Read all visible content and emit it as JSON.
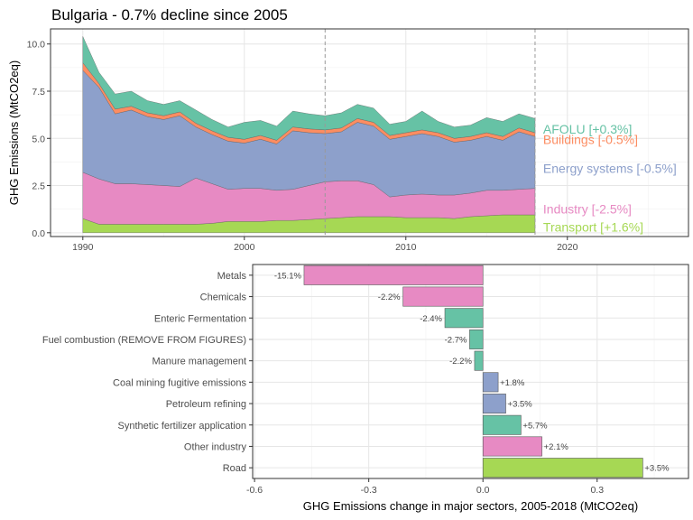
{
  "chart_data": [
    {
      "type": "area",
      "title": "Bulgaria - 0.7% decline since 2005",
      "xlabel": "",
      "ylabel": "GHG Emissions (MtCO2eq)",
      "xlim": [
        1988,
        2027.5
      ],
      "ylim": [
        -0.2,
        10.8
      ],
      "x_ticks": [
        1990,
        2000,
        2010,
        2020
      ],
      "y_ticks": [
        0.0,
        2.5,
        5.0,
        7.5,
        10.0
      ],
      "y_tick_labels": [
        "0.0",
        "2.5",
        "5.0",
        "7.5",
        "10.0"
      ],
      "reference_lines_x": [
        2005,
        2018
      ],
      "stacked": true,
      "grid": true,
      "legend": "direct labels at right",
      "x": [
        1990,
        1991,
        1992,
        1993,
        1994,
        1995,
        1996,
        1997,
        1998,
        1999,
        2000,
        2001,
        2002,
        2003,
        2004,
        2005,
        2006,
        2007,
        2008,
        2009,
        2010,
        2011,
        2012,
        2013,
        2014,
        2015,
        2016,
        2017,
        2018
      ],
      "series": [
        {
          "name": "Transport [+1.6%]",
          "color": "#a6d854",
          "values": [
            0.75,
            0.45,
            0.45,
            0.45,
            0.45,
            0.45,
            0.45,
            0.45,
            0.5,
            0.6,
            0.6,
            0.6,
            0.65,
            0.65,
            0.7,
            0.75,
            0.8,
            0.85,
            0.85,
            0.85,
            0.8,
            0.8,
            0.8,
            0.75,
            0.85,
            0.9,
            0.95,
            0.95,
            0.95
          ]
        },
        {
          "name": "Industry [-2.5%]",
          "color": "#e78ac3",
          "values": [
            2.45,
            2.4,
            2.15,
            2.15,
            2.1,
            2.05,
            2.0,
            2.45,
            2.1,
            1.7,
            1.75,
            1.75,
            1.6,
            1.65,
            1.8,
            1.95,
            1.95,
            1.9,
            1.7,
            1.05,
            1.2,
            1.25,
            1.2,
            1.25,
            1.25,
            1.35,
            1.3,
            1.35,
            1.4
          ]
        },
        {
          "name": "Energy systems [-0.5%]",
          "color": "#8da0cb",
          "values": [
            5.4,
            4.85,
            3.7,
            3.9,
            3.6,
            3.5,
            3.75,
            2.7,
            2.6,
            2.55,
            2.4,
            2.6,
            2.45,
            3.1,
            2.8,
            2.55,
            2.6,
            3.1,
            3.1,
            3.05,
            3.1,
            3.2,
            3.1,
            2.8,
            2.8,
            2.85,
            2.65,
            3.05,
            2.75
          ]
        },
        {
          "name": "Buildings [-0.5%]",
          "color": "#fc8d62",
          "values": [
            0.4,
            0.2,
            0.25,
            0.2,
            0.2,
            0.2,
            0.2,
            0.2,
            0.2,
            0.2,
            0.2,
            0.2,
            0.2,
            0.2,
            0.2,
            0.2,
            0.2,
            0.2,
            0.2,
            0.2,
            0.2,
            0.2,
            0.2,
            0.2,
            0.2,
            0.2,
            0.2,
            0.2,
            0.2
          ]
        },
        {
          "name": "AFOLU [+0.3%]",
          "color": "#66c2a5",
          "values": [
            1.4,
            0.6,
            0.8,
            0.8,
            0.65,
            0.6,
            0.6,
            0.7,
            0.6,
            0.55,
            0.9,
            0.8,
            0.75,
            0.85,
            0.8,
            0.75,
            0.8,
            0.75,
            0.75,
            0.6,
            0.6,
            1.0,
            0.6,
            0.6,
            0.6,
            0.8,
            0.8,
            0.75,
            0.75
          ]
        }
      ]
    },
    {
      "type": "bar",
      "orientation": "horizontal",
      "title": "",
      "xlabel": "GHG Emissions change in major sectors, 2005-2018 (MtCO2eq)",
      "ylabel": "",
      "xlim": [
        -0.605,
        0.54
      ],
      "x_ticks": [
        -0.6,
        -0.3,
        0.0,
        0.3
      ],
      "x_tick_labels": [
        "-0.6",
        "-0.3",
        "0.0",
        "0.3"
      ],
      "grid": true,
      "categories": [
        "Metals",
        "Chemicals",
        "Enteric Fermentation",
        "Fuel combustion (REMOVE FROM FIGURES)",
        "Manure management",
        "Coal mining fugitive emissions",
        "Petroleum refining",
        "Synthetic fertilizer application",
        "Other industry",
        "Road"
      ],
      "values": [
        -0.47,
        -0.21,
        -0.1,
        -0.035,
        -0.022,
        0.04,
        0.06,
        0.1,
        0.155,
        0.42
      ],
      "labels": [
        "-15.1%",
        "-2.2%",
        "-2.4%",
        "-2.7%",
        "-2.2%",
        "+1.8%",
        "+3.5%",
        "+5.7%",
        "+2.1%",
        "+3.5%"
      ],
      "colors": [
        "#e78ac3",
        "#e78ac3",
        "#66c2a5",
        "#66c2a5",
        "#66c2a5",
        "#8da0cb",
        "#8da0cb",
        "#66c2a5",
        "#e78ac3",
        "#a6d854"
      ]
    }
  ]
}
